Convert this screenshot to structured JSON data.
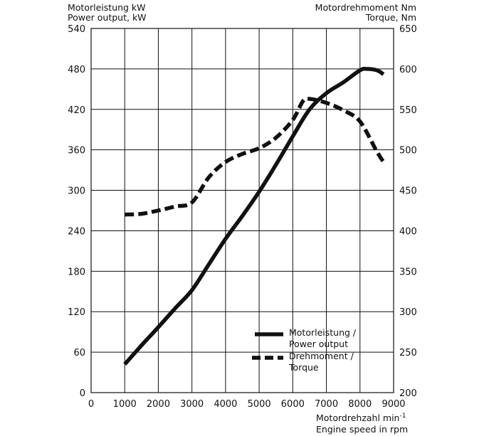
{
  "chart_data": {
    "type": "line",
    "title": "",
    "left_axis": {
      "label_de": "Motorleistung kW",
      "label_en": "Power output, kW",
      "range": [
        0,
        540
      ],
      "ticks": [
        "0",
        "60",
        "120",
        "180",
        "240",
        "300",
        "360",
        "420",
        "480",
        "540"
      ]
    },
    "right_axis": {
      "label_de": "Motordrehmoment Nm",
      "label_en": "Torque, Nm",
      "range": [
        200,
        650
      ],
      "ticks": [
        "200",
        "250",
        "300",
        "350",
        "400",
        "450",
        "500",
        "550",
        "600",
        "650"
      ]
    },
    "x_axis": {
      "label_de": "Motordrehzahl min",
      "label_de_sup": "-1",
      "label_en": "Engine speed in rpm",
      "range": [
        0,
        9000
      ],
      "ticks": [
        "0",
        "1000",
        "2000",
        "3000",
        "4000",
        "5000",
        "6000",
        "7000",
        "8000",
        "9000"
      ]
    },
    "grid": true,
    "legend_position": "bottom-right",
    "series": [
      {
        "name": "Motorleistung / Power output",
        "legend_line1": "Motorleistung /",
        "legend_line2": "Power output",
        "axis": "left",
        "style": "solid",
        "x": [
          1000,
          1500,
          2000,
          2500,
          3000,
          3500,
          4000,
          4500,
          5000,
          5500,
          6000,
          6500,
          7000,
          7500,
          8000,
          8200,
          8500,
          8700
        ],
        "values": [
          42,
          70,
          97,
          125,
          152,
          190,
          228,
          262,
          298,
          338,
          380,
          420,
          444,
          460,
          478,
          480,
          478,
          472
        ]
      },
      {
        "name": "Drehmoment / Torque",
        "legend_line1": "Drehmoment /",
        "legend_line2": "Torque",
        "axis": "right",
        "style": "dashed",
        "x": [
          1000,
          1500,
          2000,
          2500,
          3000,
          3500,
          4000,
          4500,
          5000,
          5500,
          6000,
          6300,
          6500,
          7000,
          7500,
          8000,
          8500,
          8700
        ],
        "values": [
          420,
          421,
          425,
          430,
          435,
          466,
          485,
          495,
          502,
          515,
          537,
          560,
          563,
          558,
          549,
          535,
          498,
          485
        ]
      }
    ]
  }
}
